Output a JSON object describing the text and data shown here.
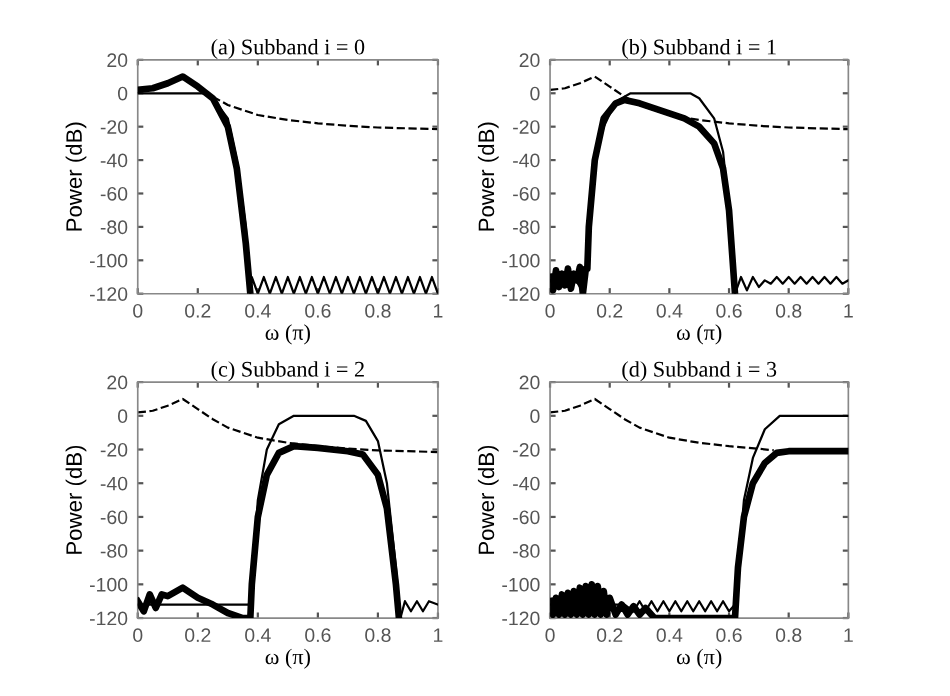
{
  "chart_data": [
    {
      "type": "line",
      "title": "(a) Subband i = 0",
      "xlabel": "ω (π)",
      "ylabel": "Power (dB)",
      "xlim": [
        0,
        1
      ],
      "ylim": [
        -120,
        20
      ],
      "xticks": [
        0,
        0.2,
        0.4,
        0.6,
        0.8,
        1
      ],
      "yticks": [
        -120,
        -100,
        -80,
        -60,
        -40,
        -20,
        0,
        20
      ],
      "grid": false,
      "legend": false,
      "marker": "none",
      "series": [
        {
          "color": "#000000",
          "line_style": "dashed",
          "x": [
            0.25,
            0.3,
            0.35,
            0.4,
            0.5,
            0.6,
            0.7,
            0.8,
            0.9,
            1.0
          ],
          "values": [
            -2,
            -7,
            -10,
            -13,
            -16,
            -18,
            -19.5,
            -20.5,
            -21,
            -21.5
          ]
        },
        {
          "color": "#000000",
          "line_style": "solid",
          "x": [
            0,
            0.22,
            0.25,
            0.3,
            0.33,
            0.36,
            0.375,
            0.38,
            0.4,
            0.42,
            0.44,
            0.46,
            0.48,
            0.5,
            0.52,
            0.54,
            0.56,
            0.58,
            0.6,
            0.62,
            0.64,
            0.66,
            0.68,
            0.7,
            0.72,
            0.74,
            0.76,
            0.78,
            0.8,
            0.82,
            0.84,
            0.86,
            0.88,
            0.9,
            0.92,
            0.94,
            0.96,
            0.98,
            1.0
          ],
          "values": [
            0,
            0,
            -3,
            -15,
            -40,
            -80,
            -120,
            -110,
            -120,
            -110,
            -120,
            -110,
            -120,
            -110,
            -120,
            -110,
            -120,
            -110,
            -120,
            -110,
            -120,
            -110,
            -120,
            -110,
            -120,
            -110,
            -120,
            -110,
            -120,
            -110,
            -120,
            -110,
            -120,
            -110,
            -120,
            -110,
            -120,
            -110,
            -120
          ]
        },
        {
          "color": "#000000",
          "line_style": "solid",
          "x": [
            0,
            0.05,
            0.1,
            0.15,
            0.2,
            0.25,
            0.3,
            0.33,
            0.36,
            0.375
          ],
          "values": [
            2,
            3,
            6,
            10,
            4,
            -3,
            -20,
            -45,
            -90,
            -120
          ]
        }
      ]
    },
    {
      "type": "line",
      "title": "(b) Subband i = 1",
      "xlabel": "ω (π)",
      "ylabel": "Power (dB)",
      "xlim": [
        0,
        1
      ],
      "ylim": [
        -120,
        20
      ],
      "xticks": [
        0,
        0.2,
        0.4,
        0.6,
        0.8,
        1
      ],
      "yticks": [
        -120,
        -100,
        -80,
        -60,
        -40,
        -20,
        0,
        20
      ],
      "grid": false,
      "legend": false,
      "marker": "none",
      "series": [
        {
          "color": "#000000",
          "line_style": "dashed",
          "x": [
            0,
            0.05,
            0.1,
            0.15,
            0.2,
            0.25,
            0.3,
            0.35,
            0.4,
            0.5,
            0.6,
            0.7,
            0.8,
            0.9,
            1.0
          ],
          "values": [
            2,
            3,
            6,
            10,
            4,
            -2,
            -7,
            -10,
            -13,
            -16,
            -18,
            -19.5,
            -20.5,
            -21,
            -21.5
          ]
        },
        {
          "color": "#000000",
          "line_style": "solid",
          "x": [
            0,
            0.02,
            0.04,
            0.06,
            0.08,
            0.1,
            0.12,
            0.13,
            0.15,
            0.18,
            0.22,
            0.27,
            0.47,
            0.5,
            0.55,
            0.58,
            0.6,
            0.62,
            0.64,
            0.66,
            0.68,
            0.7,
            0.72,
            0.74,
            0.76,
            0.78,
            0.8,
            0.82,
            0.84,
            0.86,
            0.88,
            0.9,
            0.92,
            0.94,
            0.96,
            0.98,
            1.0
          ],
          "values": [
            -112,
            -116,
            -110,
            -116,
            -110,
            -116,
            -112,
            -80,
            -40,
            -20,
            -5,
            0,
            0,
            -3,
            -15,
            -35,
            -70,
            -120,
            -110,
            -118,
            -110,
            -116,
            -112,
            -114,
            -110,
            -114,
            -110,
            -114,
            -110,
            -114,
            -110,
            -114,
            -110,
            -114,
            -110,
            -114,
            -112
          ]
        },
        {
          "color": "#000000",
          "line_style": "solid",
          "x": [
            0,
            0.01,
            0.02,
            0.03,
            0.04,
            0.05,
            0.06,
            0.07,
            0.08,
            0.09,
            0.1,
            0.11,
            0.12,
            0.125,
            0.13,
            0.15,
            0.18,
            0.22,
            0.25,
            0.3,
            0.35,
            0.4,
            0.45,
            0.5,
            0.55,
            0.58,
            0.6,
            0.62
          ],
          "values": [
            -110,
            -118,
            -106,
            -116,
            -108,
            -115,
            -105,
            -117,
            -108,
            -112,
            -104,
            -120,
            -105,
            -105,
            -80,
            -40,
            -15,
            -6,
            -4,
            -6,
            -9,
            -12,
            -15,
            -20,
            -30,
            -45,
            -70,
            -120
          ]
        }
      ]
    },
    {
      "type": "line",
      "title": "(c) Subband i = 2",
      "xlabel": "ω (π)",
      "ylabel": "Power (dB)",
      "xlim": [
        0,
        1
      ],
      "ylim": [
        -120,
        20
      ],
      "xticks": [
        0,
        0.2,
        0.4,
        0.6,
        0.8,
        1
      ],
      "yticks": [
        -120,
        -100,
        -80,
        -60,
        -40,
        -20,
        0,
        20
      ],
      "grid": false,
      "legend": false,
      "marker": "none",
      "series": [
        {
          "color": "#000000",
          "line_style": "dashed",
          "x": [
            0,
            0.05,
            0.1,
            0.15,
            0.2,
            0.25,
            0.3,
            0.35,
            0.4,
            0.5,
            0.6,
            0.7,
            0.8,
            0.9,
            1.0
          ],
          "values": [
            2,
            3,
            6,
            10,
            4,
            -2,
            -7,
            -10,
            -13,
            -16,
            -18,
            -19.5,
            -20.5,
            -21,
            -21.5
          ]
        },
        {
          "color": "#000000",
          "line_style": "solid",
          "x": [
            0,
            0.37,
            0.38,
            0.4,
            0.43,
            0.47,
            0.52,
            0.72,
            0.76,
            0.8,
            0.83,
            0.86,
            0.875,
            0.89,
            0.91,
            0.93,
            0.95,
            0.97,
            1.0
          ],
          "values": [
            -112,
            -112,
            -100,
            -50,
            -20,
            -5,
            0,
            0,
            -3,
            -15,
            -40,
            -90,
            -120,
            -110,
            -116,
            -110,
            -116,
            -110,
            -112
          ]
        },
        {
          "color": "#000000",
          "line_style": "solid",
          "x": [
            0,
            0.02,
            0.04,
            0.06,
            0.08,
            0.1,
            0.15,
            0.2,
            0.25,
            0.3,
            0.35,
            0.375,
            0.38,
            0.4,
            0.43,
            0.47,
            0.52,
            0.6,
            0.7,
            0.75,
            0.8,
            0.83,
            0.86,
            0.87
          ],
          "values": [
            -110,
            -116,
            -106,
            -114,
            -106,
            -107,
            -102,
            -108,
            -112,
            -117,
            -120,
            -120,
            -100,
            -60,
            -35,
            -22,
            -18,
            -19,
            -21,
            -23,
            -35,
            -55,
            -100,
            -120
          ]
        }
      ]
    },
    {
      "type": "line",
      "title": "(d) Subband i = 3",
      "xlabel": "ω (π)",
      "ylabel": "Power (dB)",
      "xlim": [
        0,
        1
      ],
      "ylim": [
        -120,
        20
      ],
      "xticks": [
        0,
        0.2,
        0.4,
        0.6,
        0.8,
        1
      ],
      "yticks": [
        -120,
        -100,
        -80,
        -60,
        -40,
        -20,
        0,
        20
      ],
      "grid": false,
      "legend": false,
      "marker": "none",
      "series": [
        {
          "color": "#000000",
          "line_style": "dashed",
          "x": [
            0,
            0.05,
            0.1,
            0.15,
            0.2,
            0.25,
            0.3,
            0.35,
            0.4,
            0.5,
            0.6,
            0.7,
            0.75
          ],
          "values": [
            2,
            3,
            6,
            10,
            4,
            -2,
            -7,
            -10,
            -13,
            -16,
            -18,
            -19.5,
            -20.5
          ]
        },
        {
          "color": "#000000",
          "line_style": "solid",
          "x": [
            0,
            0.25,
            0.28,
            0.3,
            0.32,
            0.34,
            0.36,
            0.38,
            0.4,
            0.42,
            0.44,
            0.46,
            0.48,
            0.5,
            0.52,
            0.54,
            0.56,
            0.58,
            0.6,
            0.62,
            0.625,
            0.65,
            0.68,
            0.72,
            0.77,
            1.0
          ],
          "values": [
            -112,
            -112,
            -116,
            -110,
            -116,
            -110,
            -116,
            -110,
            -116,
            -110,
            -116,
            -110,
            -116,
            -110,
            -116,
            -110,
            -116,
            -110,
            -116,
            -112,
            -100,
            -50,
            -25,
            -8,
            0,
            0
          ]
        },
        {
          "color": "#000000",
          "line_style": "solid",
          "x": [
            0,
            0.01,
            0.02,
            0.03,
            0.04,
            0.05,
            0.06,
            0.07,
            0.08,
            0.09,
            0.1,
            0.11,
            0.12,
            0.13,
            0.14,
            0.15,
            0.16,
            0.17,
            0.18,
            0.19,
            0.2,
            0.22,
            0.24,
            0.26,
            0.28,
            0.3,
            0.32,
            0.34,
            0.35,
            0.62,
            0.63,
            0.65,
            0.68,
            0.72,
            0.76,
            0.8,
            1.0
          ],
          "values": [
            -110,
            -118,
            -108,
            -118,
            -106,
            -118,
            -105,
            -118,
            -104,
            -118,
            -102,
            -118,
            -101,
            -118,
            -100,
            -118,
            -101,
            -118,
            -104,
            -118,
            -108,
            -118,
            -112,
            -118,
            -113,
            -118,
            -114,
            -118,
            -120,
            -120,
            -90,
            -60,
            -40,
            -28,
            -22,
            -21,
            -21
          ]
        }
      ]
    }
  ]
}
